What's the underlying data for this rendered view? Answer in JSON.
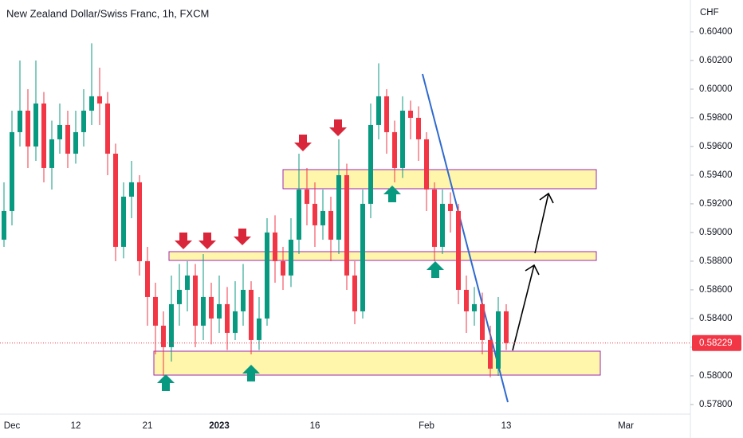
{
  "chart_data": {
    "type": "candlestick",
    "title": "New Zealand Dollar/Swiss Franc, 1h, FXCM",
    "y_axis_label": "CHF",
    "up_color": "#089981",
    "down_color": "#f23645",
    "categories": [
      null,
      "Dec",
      null,
      null,
      null,
      null,
      null,
      null,
      null,
      "12",
      null,
      null,
      null,
      null,
      null,
      null,
      null,
      null,
      "21",
      null,
      null,
      null,
      null,
      null,
      null,
      null,
      null,
      "2023",
      null,
      null,
      null,
      null,
      null,
      null,
      null,
      null,
      null,
      null,
      null,
      "16",
      null,
      null,
      null,
      null,
      null,
      null,
      null,
      null,
      null,
      null,
      null,
      null,
      null,
      "Feb",
      null,
      null,
      null,
      null,
      null,
      null,
      null,
      null,
      null,
      "13",
      null,
      null,
      null,
      null,
      null,
      null,
      null,
      null,
      null,
      null,
      null,
      null,
      null,
      null,
      "Mar",
      null,
      null,
      null,
      null,
      null,
      null,
      null,
      null
    ],
    "open": [
      0.5895,
      0.5915,
      0.597,
      0.5985,
      0.596,
      0.599,
      0.5945,
      0.5965,
      0.5975,
      0.5955,
      0.597,
      0.5985,
      0.5995,
      0.599,
      0.5955,
      0.589,
      0.5925,
      0.5935,
      0.588,
      0.5855,
      0.5835,
      0.582,
      0.585,
      0.586,
      0.587,
      0.5835,
      0.5855,
      0.584,
      0.585,
      0.583,
      0.5845,
      0.586,
      0.5825,
      0.584,
      0.59,
      0.588,
      0.587,
      0.5895,
      0.593,
      0.592,
      0.5905,
      0.5915,
      0.5895,
      0.594,
      0.587,
      0.5845,
      0.592,
      0.5975,
      0.5995,
      0.597,
      0.5945,
      0.5985,
      0.598,
      0.5965,
      0.593,
      0.589,
      0.592,
      0.5915,
      0.586,
      0.5845,
      0.585,
      0.5825,
      0.5805,
      0.5845,
      null,
      null,
      null,
      null,
      null,
      null,
      null,
      null,
      null,
      null,
      null,
      null,
      null,
      null,
      null,
      null,
      null,
      null,
      null,
      null,
      null,
      null,
      null
    ],
    "high": [
      0.5935,
      0.5985,
      0.602,
      0.6,
      0.602,
      0.5998,
      0.5978,
      0.599,
      0.5985,
      0.5985,
      0.6,
      0.6032,
      0.6015,
      0.5998,
      0.5962,
      0.5935,
      0.595,
      0.594,
      0.589,
      0.5865,
      0.5845,
      0.587,
      0.5878,
      0.588,
      0.5878,
      0.5885,
      0.5865,
      0.587,
      0.5862,
      0.5866,
      0.5878,
      0.5866,
      0.5855,
      0.591,
      0.5912,
      0.589,
      0.591,
      0.5955,
      0.5945,
      0.5935,
      0.593,
      0.5925,
      0.5965,
      0.5948,
      0.588,
      0.593,
      0.599,
      0.6018,
      0.6,
      0.5978,
      0.5995,
      0.5992,
      0.5988,
      0.597,
      0.5935,
      0.593,
      0.5928,
      0.592,
      0.587,
      0.5862,
      0.5858,
      0.5835,
      0.5855,
      0.585,
      null,
      null,
      null,
      null,
      null,
      null,
      null,
      null,
      null,
      null,
      null,
      null,
      null,
      null,
      null,
      null,
      null,
      null,
      null,
      null,
      null,
      null,
      null
    ],
    "low": [
      0.589,
      0.5905,
      0.596,
      0.5945,
      0.595,
      0.5935,
      0.593,
      0.5955,
      0.5945,
      0.5948,
      0.596,
      0.5975,
      0.5975,
      0.594,
      0.588,
      0.5882,
      0.591,
      0.587,
      0.5835,
      0.5815,
      0.58,
      0.581,
      0.5835,
      0.5845,
      0.582,
      0.5825,
      0.5822,
      0.583,
      0.5818,
      0.5825,
      0.5835,
      0.5815,
      0.5818,
      0.5835,
      0.5865,
      0.586,
      0.5862,
      0.5885,
      0.5905,
      0.589,
      0.5895,
      0.588,
      0.5885,
      0.586,
      0.5836,
      0.584,
      0.591,
      0.5965,
      0.5955,
      0.5935,
      0.5938,
      0.5965,
      0.595,
      0.5915,
      0.588,
      0.5885,
      0.59,
      0.585,
      0.583,
      0.5835,
      0.5815,
      0.5799,
      0.58,
      0.5818,
      null,
      null,
      null,
      null,
      null,
      null,
      null,
      null,
      null,
      null,
      null,
      null,
      null,
      null,
      null,
      null,
      null,
      null,
      null,
      null,
      null,
      null,
      null
    ],
    "close": [
      0.5915,
      0.597,
      0.5985,
      0.596,
      0.599,
      0.5945,
      0.5965,
      0.5975,
      0.5955,
      0.597,
      0.5985,
      0.5995,
      0.599,
      0.5955,
      0.589,
      0.5925,
      0.5935,
      0.588,
      0.5855,
      0.5835,
      0.582,
      0.585,
      0.586,
      0.587,
      0.5835,
      0.5855,
      0.584,
      0.585,
      0.583,
      0.5845,
      0.586,
      0.5825,
      0.584,
      0.59,
      0.588,
      0.587,
      0.5895,
      0.593,
      0.592,
      0.5905,
      0.5915,
      0.5895,
      0.594,
      0.587,
      0.5845,
      0.592,
      0.5975,
      0.5995,
      0.597,
      0.5945,
      0.5985,
      0.598,
      0.5965,
      0.593,
      0.589,
      0.592,
      0.5915,
      0.586,
      0.5845,
      0.585,
      0.5825,
      0.5805,
      0.5845,
      0.58229,
      null,
      null,
      null,
      null,
      null,
      null,
      null,
      null,
      null,
      null,
      null,
      null,
      null,
      null,
      null,
      null,
      null,
      null,
      null,
      null,
      null,
      null,
      null
    ],
    "ylim": [
      0.57733,
      0.60622
    ],
    "yticks": [
      {
        "value": 0.578,
        "label": "0.57800"
      },
      {
        "value": 0.58,
        "label": "0.58000"
      },
      {
        "value": 0.582,
        "label": "0.58200"
      },
      {
        "value": 0.584,
        "label": "0.58400"
      },
      {
        "value": 0.586,
        "label": "0.58600"
      },
      {
        "value": 0.588,
        "label": "0.58800"
      },
      {
        "value": 0.59,
        "label": "0.59000"
      },
      {
        "value": 0.592,
        "label": "0.59200"
      },
      {
        "value": 0.594,
        "label": "0.59400"
      },
      {
        "value": 0.596,
        "label": "0.59600"
      },
      {
        "value": 0.598,
        "label": "0.59800"
      },
      {
        "value": 0.6,
        "label": "0.60000"
      },
      {
        "value": 0.602,
        "label": "0.60200"
      },
      {
        "value": 0.604,
        "label": "0.60400"
      }
    ],
    "grid": false
  }
}
